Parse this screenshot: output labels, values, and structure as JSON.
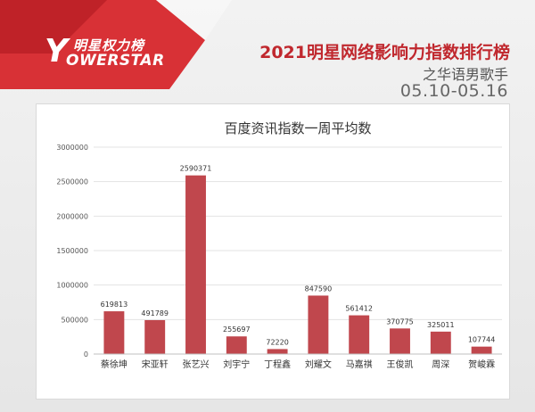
{
  "brand": {
    "logo_cn": "明星权力榜",
    "logo_en": "OWERSTAR",
    "logo_mark": "Y"
  },
  "header": {
    "title": "2021明星网络影响力指数排行榜",
    "subtitle": "之华语男歌手",
    "date_range": "05.10-05.16"
  },
  "colors": {
    "bar": "#c0474d",
    "accent": "#c0282e",
    "brand_red": "#d6262b"
  },
  "chart_data": {
    "type": "bar",
    "title": "百度资讯指数一周平均数",
    "categories": [
      "蔡徐坤",
      "宋亚轩",
      "张艺兴",
      "刘宇宁",
      "丁程鑫",
      "刘耀文",
      "马嘉祺",
      "王俊凯",
      "周深",
      "贺峻霖"
    ],
    "values": [
      619813,
      491789,
      2590371,
      255697,
      72220,
      847590,
      561412,
      370775,
      325011,
      107744
    ],
    "value_labels": [
      "619813",
      "491789",
      "2590371",
      "255697",
      "72220",
      "847590",
      "561412",
      "370775",
      "325011",
      "107744"
    ],
    "yticks": [
      "0",
      "500000",
      "1000000",
      "1500000",
      "2000000",
      "2500000",
      "3000000"
    ],
    "ytick_values": [
      0,
      500000,
      1000000,
      1500000,
      2000000,
      2500000,
      3000000
    ],
    "ylim": [
      0,
      3000000
    ],
    "xlabel": "",
    "ylabel": "",
    "grid": true,
    "legend": "none"
  }
}
